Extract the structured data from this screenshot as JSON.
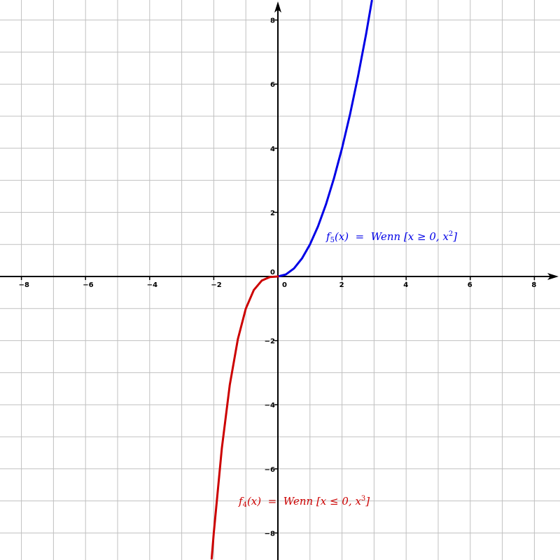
{
  "chart_data": {
    "type": "line",
    "title": "",
    "xlabel": "",
    "ylabel": "",
    "xlim": [
      -8.7,
      8.8
    ],
    "ylim": [
      -8.8,
      8.6
    ],
    "grid": true,
    "x_ticks": [
      "−8",
      "−6",
      "−4",
      "−2",
      "0",
      "2",
      "4",
      "6",
      "8"
    ],
    "y_ticks_pos": [
      "2",
      "4",
      "6",
      "8"
    ],
    "y_ticks_neg": [
      "−2",
      "−4",
      "−6",
      "−8"
    ],
    "origin_label": "0",
    "series": [
      {
        "name": "f5",
        "color": "#0000e6",
        "x": [
          0,
          0.25,
          0.5,
          0.75,
          1.0,
          1.25,
          1.5,
          1.75,
          2.0,
          2.25,
          2.5,
          2.75,
          2.93
        ],
        "y": [
          0,
          0.0625,
          0.25,
          0.5625,
          1.0,
          1.5625,
          2.25,
          3.0625,
          4.0,
          5.0625,
          6.25,
          7.5625,
          8.6
        ]
      },
      {
        "name": "f4",
        "color": "#cc0000",
        "x": [
          0,
          -0.25,
          -0.5,
          -0.75,
          -1.0,
          -1.25,
          -1.5,
          -1.75,
          -2.0,
          -2.065
        ],
        "y": [
          0,
          -0.015625,
          -0.125,
          -0.421875,
          -1.0,
          -1.953125,
          -3.375,
          -5.359375,
          -8.0,
          -8.8
        ]
      }
    ],
    "annotations": [
      {
        "series": "f5",
        "color": "#0000e6",
        "name": "f",
        "index": "5",
        "arg": "(x)",
        "eq": "=",
        "body": "Wenn [x ≥ 0, x",
        "power": "2",
        "close": "]"
      },
      {
        "series": "f4",
        "color": "#cc0000",
        "name": "f",
        "index": "4",
        "arg": "(x)",
        "eq": "=",
        "body": "Wenn [x ≤ 0, x",
        "power": "3",
        "close": "]"
      }
    ]
  }
}
